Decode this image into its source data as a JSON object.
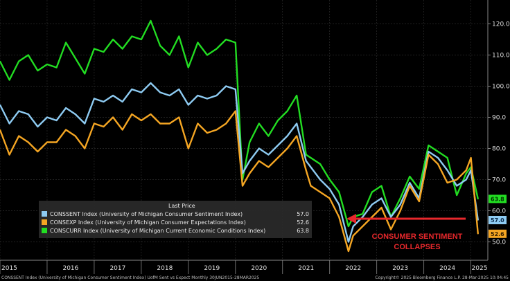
{
  "chart_data": {
    "type": "line",
    "ylim": [
      45,
      125
    ],
    "yticks": [
      50,
      60,
      70,
      80,
      90,
      100,
      110,
      120
    ],
    "ytick_labels": [
      "50.0",
      "60.0",
      "70.0",
      "80.0",
      "90.0",
      "100.0",
      "110.0",
      "120.0"
    ],
    "xlim": [
      2015.0,
      2025.3
    ],
    "year_labels": [
      "2015",
      "2016",
      "2017",
      "2018",
      "2019",
      "2020",
      "2021",
      "2022",
      "2023",
      "2024",
      "2025"
    ],
    "legend": {
      "header": "Last Price",
      "placement": "bottom-left"
    },
    "series": [
      {
        "name": "CONSCURR Index (University of Michigan Current Economic Conditions Index)",
        "color": "#22dd22",
        "last": "63.8",
        "x": [
          2015.0,
          2015.2,
          2015.4,
          2015.6,
          2015.8,
          2016.0,
          2016.2,
          2016.4,
          2016.6,
          2016.8,
          2017.0,
          2017.2,
          2017.4,
          2017.6,
          2017.8,
          2018.0,
          2018.2,
          2018.4,
          2018.6,
          2018.8,
          2019.0,
          2019.2,
          2019.4,
          2019.6,
          2019.8,
          2020.0,
          2020.15,
          2020.3,
          2020.5,
          2020.7,
          2020.9,
          2021.1,
          2021.3,
          2021.5,
          2021.6,
          2021.8,
          2022.0,
          2022.2,
          2022.4,
          2022.5,
          2022.7,
          2022.9,
          2023.1,
          2023.3,
          2023.5,
          2023.7,
          2023.9,
          2024.1,
          2024.3,
          2024.5,
          2024.7,
          2024.9,
          2025.0,
          2025.15
        ],
        "y": [
          108,
          102,
          108,
          110,
          105,
          107,
          106,
          114,
          109,
          104,
          112,
          111,
          115,
          112,
          116,
          115,
          121,
          113,
          110,
          116,
          106,
          114,
          110,
          112,
          115,
          114,
          70,
          82,
          88,
          84,
          89,
          92,
          97,
          78,
          77,
          75,
          70,
          66,
          55,
          58,
          59,
          66,
          68,
          58,
          64,
          71,
          67,
          81,
          79,
          77,
          65,
          72,
          74,
          63.8
        ]
      },
      {
        "name": "CONSSENT Index (University of Michigan Consumer Sentiment Index)",
        "color": "#8ecbf2",
        "last": "57.0",
        "x": [
          2015.0,
          2015.2,
          2015.4,
          2015.6,
          2015.8,
          2016.0,
          2016.2,
          2016.4,
          2016.6,
          2016.8,
          2017.0,
          2017.2,
          2017.4,
          2017.6,
          2017.8,
          2018.0,
          2018.2,
          2018.4,
          2018.6,
          2018.8,
          2019.0,
          2019.2,
          2019.4,
          2019.6,
          2019.8,
          2020.0,
          2020.15,
          2020.3,
          2020.5,
          2020.7,
          2020.9,
          2021.1,
          2021.3,
          2021.5,
          2021.6,
          2021.8,
          2022.0,
          2022.2,
          2022.4,
          2022.5,
          2022.7,
          2022.9,
          2023.1,
          2023.3,
          2023.5,
          2023.7,
          2023.9,
          2024.1,
          2024.3,
          2024.5,
          2024.7,
          2024.9,
          2025.0,
          2025.15
        ],
        "y": [
          94,
          88,
          92,
          91,
          87,
          90,
          89,
          93,
          91,
          88,
          96,
          95,
          97,
          95,
          99,
          98,
          101,
          98,
          97,
          99,
          94,
          97,
          96,
          97,
          100,
          99,
          72,
          76,
          80,
          78,
          81,
          84,
          88,
          76,
          74,
          70,
          67,
          62,
          50,
          55,
          58,
          62,
          64,
          58,
          62,
          69,
          64,
          79,
          77,
          73,
          68,
          70,
          73,
          57.0
        ]
      },
      {
        "name": "CONSEXP Index (University of Michigan Consumer Expectations Index)",
        "color": "#f5a623",
        "last": "52.6",
        "x": [
          2015.0,
          2015.2,
          2015.4,
          2015.6,
          2015.8,
          2016.0,
          2016.2,
          2016.4,
          2016.6,
          2016.8,
          2017.0,
          2017.2,
          2017.4,
          2017.6,
          2017.8,
          2018.0,
          2018.2,
          2018.4,
          2018.6,
          2018.8,
          2019.0,
          2019.2,
          2019.4,
          2019.6,
          2019.8,
          2020.0,
          2020.15,
          2020.3,
          2020.5,
          2020.7,
          2020.9,
          2021.1,
          2021.3,
          2021.5,
          2021.6,
          2021.8,
          2022.0,
          2022.2,
          2022.4,
          2022.5,
          2022.7,
          2022.9,
          2023.1,
          2023.3,
          2023.5,
          2023.7,
          2023.9,
          2024.1,
          2024.3,
          2024.5,
          2024.7,
          2024.9,
          2025.0,
          2025.15
        ],
        "y": [
          86,
          78,
          84,
          82,
          79,
          82,
          82,
          86,
          84,
          80,
          88,
          87,
          90,
          86,
          91,
          89,
          91,
          88,
          88,
          90,
          80,
          88,
          85,
          86,
          88,
          92,
          68,
          72,
          76,
          74,
          77,
          80,
          84,
          73,
          68,
          66,
          64,
          58,
          47,
          52,
          55,
          58,
          61,
          54,
          60,
          68,
          63,
          78,
          75,
          69,
          70,
          73,
          77,
          52.6
        ]
      }
    ],
    "annotation": {
      "lines": [
        "CONSUMER SENTIMENT",
        "COLLAPSES"
      ],
      "arrow_color": "#e8282c",
      "arrow_target": {
        "x": 2022.4,
        "y": 53
      }
    },
    "footer": {
      "left": "CONSSENT Index (University of Michigan Consumer Sentiment Index) UofM Sent vs Expect  Monthly 30JUN2015-28MAR2025",
      "right": "Copyright© 2025 Bloomberg Finance L.P.      28-Mar-2025 10:04:45"
    }
  }
}
